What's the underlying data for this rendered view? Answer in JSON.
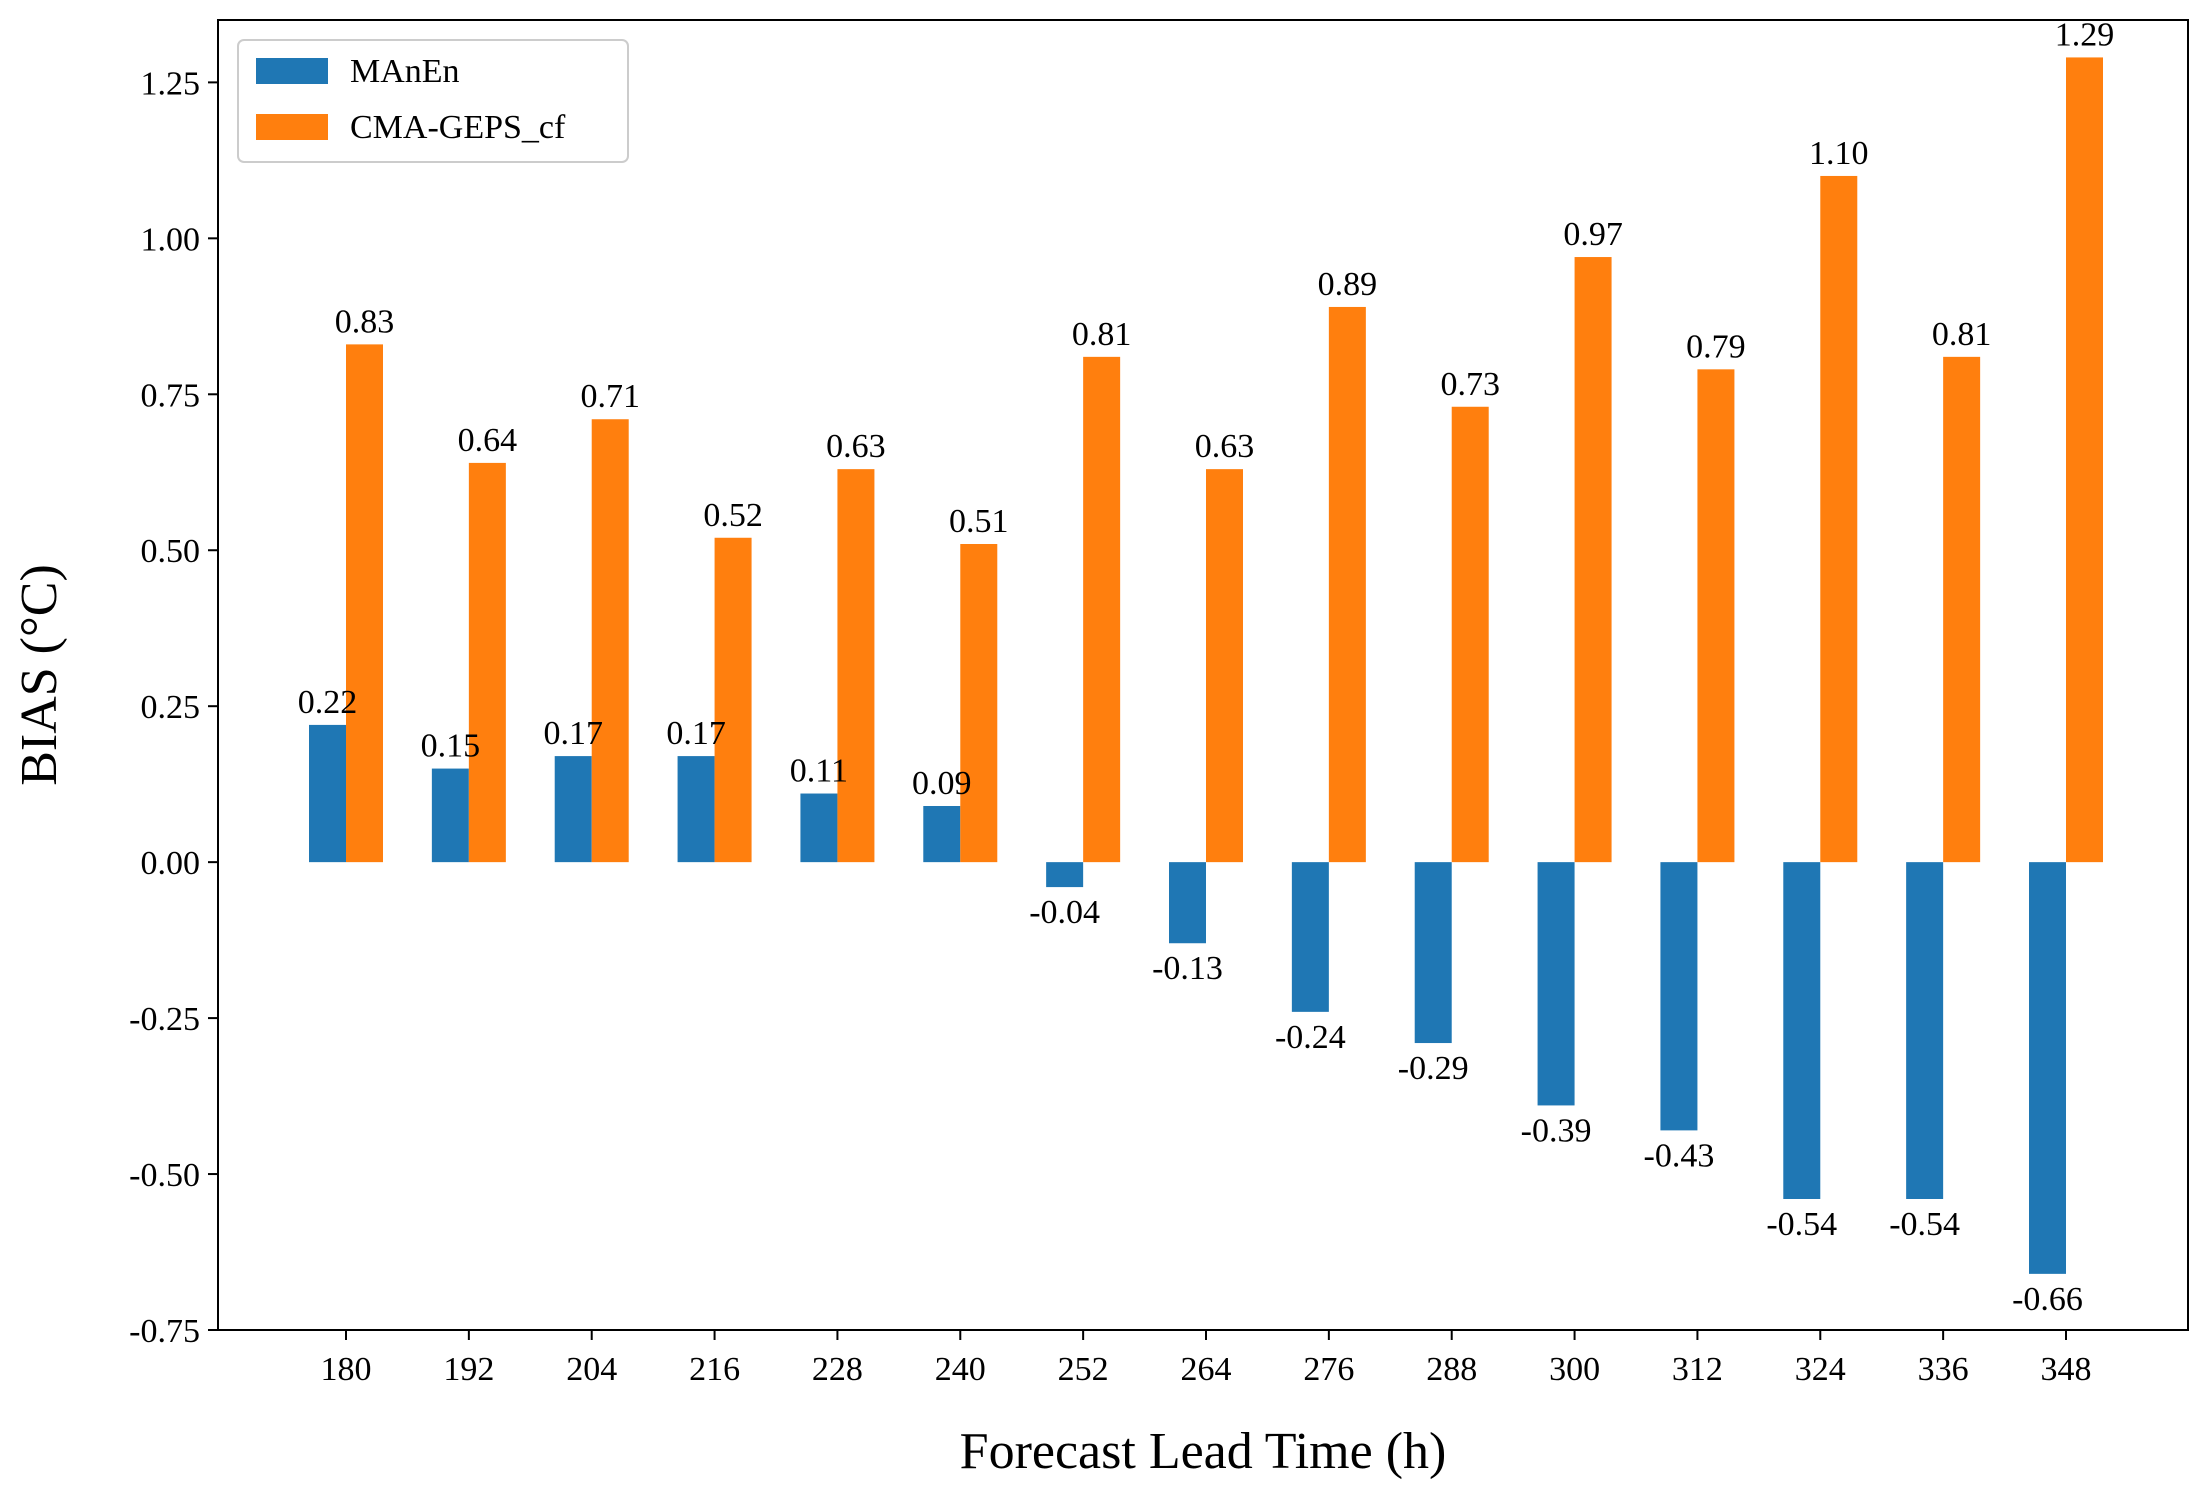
{
  "chart_data": {
    "type": "bar",
    "title": "",
    "xlabel": "Forecast Lead Time (h)",
    "ylabel": "BIAS (°C)",
    "ylim": [
      -0.75,
      1.35
    ],
    "yticks": [
      -0.75,
      -0.5,
      -0.25,
      0.0,
      0.25,
      0.5,
      0.75,
      1.0,
      1.25
    ],
    "ytick_labels": [
      "-0.75",
      "-0.50",
      "-0.25",
      "0.00",
      "0.25",
      "0.50",
      "0.75",
      "1.00",
      "1.25"
    ],
    "categories": [
      "180",
      "192",
      "204",
      "216",
      "228",
      "240",
      "252",
      "264",
      "276",
      "288",
      "300",
      "312",
      "324",
      "336",
      "348"
    ],
    "series": [
      {
        "name": "MAnEn",
        "color": "#1f77b4",
        "values": [
          0.22,
          0.15,
          0.17,
          0.17,
          0.11,
          0.09,
          -0.04,
          -0.13,
          -0.24,
          -0.29,
          -0.39,
          -0.43,
          -0.54,
          -0.54,
          -0.66
        ],
        "labels": [
          "0.22",
          "0.15",
          "0.17",
          "0.17",
          "0.11",
          "0.09",
          "-0.04",
          "-0.13",
          "-0.24",
          "-0.29",
          "-0.39",
          "-0.43",
          "-0.54",
          "-0.54",
          "-0.66"
        ]
      },
      {
        "name": "CMA-GEPS_cf",
        "color": "#ff7f0e",
        "values": [
          0.83,
          0.64,
          0.71,
          0.52,
          0.63,
          0.51,
          0.81,
          0.63,
          0.89,
          0.73,
          0.97,
          0.79,
          1.1,
          0.81,
          1.29
        ],
        "labels": [
          "0.83",
          "0.64",
          "0.71",
          "0.52",
          "0.63",
          "0.51",
          "0.81",
          "0.63",
          "0.89",
          "0.73",
          "0.97",
          "0.79",
          "1.10",
          "0.81",
          "1.29"
        ]
      }
    ],
    "legend_position": "top-left",
    "grid": false
  }
}
